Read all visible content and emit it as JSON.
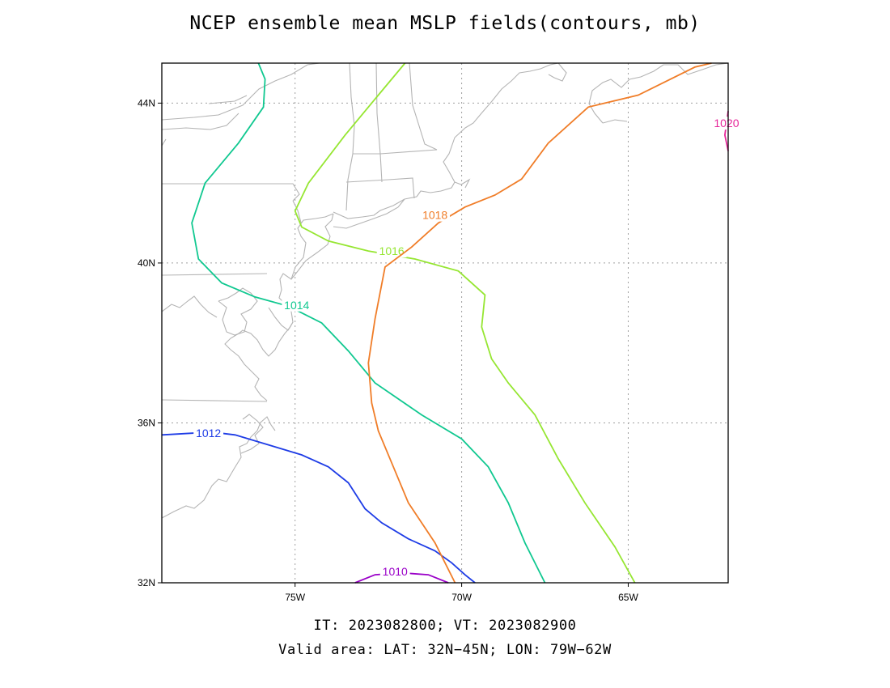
{
  "title": "NCEP ensemble mean MSLP fields(contours, mb)",
  "footer": {
    "line1": "IT: 2023082800; VT: 2023082900",
    "line2": "Valid area: LAT: 32N−45N; LON: 79W−62W"
  },
  "map": {
    "lon_range": [
      -79,
      -62
    ],
    "lat_range": [
      32,
      45
    ],
    "x_ticks": [
      {
        "lon": -75,
        "label": "75W"
      },
      {
        "lon": -70,
        "label": "70W"
      },
      {
        "lon": -65,
        "label": "65W"
      }
    ],
    "y_ticks": [
      {
        "lat": 32,
        "label": "32N"
      },
      {
        "lat": 36,
        "label": "36N"
      },
      {
        "lat": 40,
        "label": "40N"
      },
      {
        "lat": 44,
        "label": "44N"
      }
    ],
    "grid": true
  },
  "contours": [
    {
      "value": 1010,
      "label": "1010",
      "color": "#9a00c8",
      "points": [
        [
          -73.2,
          32.0
        ],
        [
          -72.6,
          32.2
        ],
        [
          -71.8,
          32.25
        ],
        [
          -71.0,
          32.2
        ],
        [
          -70.4,
          32.0
        ]
      ],
      "label_at": [
        -72.0,
        32.28
      ]
    },
    {
      "value": 1012,
      "label": "1012",
      "color": "#1e3ce6",
      "points": [
        [
          -79,
          35.7
        ],
        [
          -77.5,
          35.77
        ],
        [
          -76.8,
          35.7
        ],
        [
          -75.8,
          35.45
        ],
        [
          -74.8,
          35.2
        ],
        [
          -74.0,
          34.9
        ],
        [
          -73.4,
          34.5
        ],
        [
          -72.9,
          33.85
        ],
        [
          -72.4,
          33.5
        ],
        [
          -71.6,
          33.1
        ],
        [
          -70.8,
          32.8
        ],
        [
          -70.3,
          32.5
        ],
        [
          -69.9,
          32.2
        ],
        [
          -69.6,
          32.0
        ]
      ],
      "label_at": [
        -77.6,
        35.75
      ]
    },
    {
      "value": 1014,
      "label": "1014",
      "color": "#10c890",
      "points": [
        [
          -76.1,
          45.0
        ],
        [
          -75.9,
          44.6
        ],
        [
          -75.95,
          43.9
        ],
        [
          -76.7,
          43.0
        ],
        [
          -77.7,
          42.0
        ],
        [
          -78.1,
          41.0
        ],
        [
          -77.9,
          40.1
        ],
        [
          -77.2,
          39.5
        ],
        [
          -76.2,
          39.15
        ],
        [
          -75.2,
          38.92
        ],
        [
          -74.2,
          38.5
        ],
        [
          -73.4,
          37.8
        ],
        [
          -72.6,
          37.0
        ],
        [
          -71.2,
          36.2
        ],
        [
          -70.0,
          35.6
        ],
        [
          -69.2,
          34.9
        ],
        [
          -68.6,
          34.0
        ],
        [
          -68.1,
          33.0
        ],
        [
          -67.5,
          32.0
        ]
      ],
      "label_at": [
        -74.95,
        38.95
      ]
    },
    {
      "value": 1016,
      "label": "1016",
      "color": "#96e632",
      "points": [
        [
          -71.7,
          45.0
        ],
        [
          -72.5,
          44.2
        ],
        [
          -73.5,
          43.2
        ],
        [
          -74.6,
          42.0
        ],
        [
          -75.0,
          41.3
        ],
        [
          -74.8,
          40.9
        ],
        [
          -74.0,
          40.55
        ],
        [
          -72.8,
          40.3
        ],
        [
          -71.4,
          40.1
        ],
        [
          -70.1,
          39.8
        ],
        [
          -69.3,
          39.2
        ],
        [
          -69.4,
          38.4
        ],
        [
          -69.1,
          37.6
        ],
        [
          -68.6,
          37.0
        ],
        [
          -67.8,
          36.2
        ],
        [
          -67.1,
          35.1
        ],
        [
          -66.3,
          34.0
        ],
        [
          -65.4,
          32.9
        ],
        [
          -64.8,
          32.0
        ]
      ],
      "label_at": [
        -72.1,
        40.3
      ]
    },
    {
      "value": 1018,
      "label": "1018",
      "color": "#f07d28",
      "points": [
        [
          -62.5,
          45.0
        ],
        [
          -63.0,
          44.9
        ],
        [
          -64.7,
          44.2
        ],
        [
          -66.2,
          43.9
        ],
        [
          -67.4,
          43.0
        ],
        [
          -68.2,
          42.1
        ],
        [
          -69.0,
          41.7
        ],
        [
          -69.9,
          41.4
        ],
        [
          -70.7,
          41.0
        ],
        [
          -71.5,
          40.4
        ],
        [
          -72.3,
          39.9
        ],
        [
          -72.6,
          38.6
        ],
        [
          -72.8,
          37.5
        ],
        [
          -72.7,
          36.5
        ],
        [
          -72.5,
          35.8
        ],
        [
          -72.1,
          35.0
        ],
        [
          -71.6,
          34.0
        ],
        [
          -70.8,
          33.0
        ],
        [
          -70.2,
          32.0
        ]
      ],
      "label_at": [
        -70.8,
        41.2
      ]
    },
    {
      "value": 1020,
      "label": "1020",
      "color": "#e6289a",
      "points": [
        [
          -62.0,
          43.8
        ],
        [
          -62.1,
          43.2
        ],
        [
          -62.0,
          42.8
        ]
      ],
      "label_at": [
        -62.05,
        43.5
      ]
    }
  ]
}
